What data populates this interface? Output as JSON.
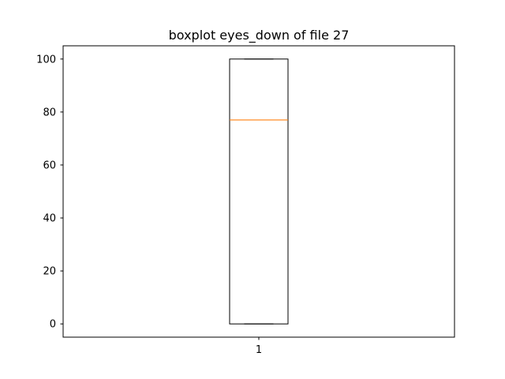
{
  "chart_data": {
    "type": "boxplot",
    "title": "boxplot eyes_down of file 27",
    "xlabel": "",
    "ylabel": "",
    "categories": [
      "1"
    ],
    "boxes": [
      {
        "category": "1",
        "whisker_low": 0,
        "q1": 0,
        "median": 77,
        "q3": 100,
        "whisker_high": 100
      }
    ],
    "ylim": [
      -5,
      105
    ],
    "yticks": [
      0,
      20,
      40,
      60,
      80,
      100
    ],
    "xticks": [
      "1"
    ],
    "grid": false,
    "legend": "none",
    "colors": {
      "box": "#000000",
      "median": "#ff7f0e",
      "axes": "#000000"
    }
  }
}
